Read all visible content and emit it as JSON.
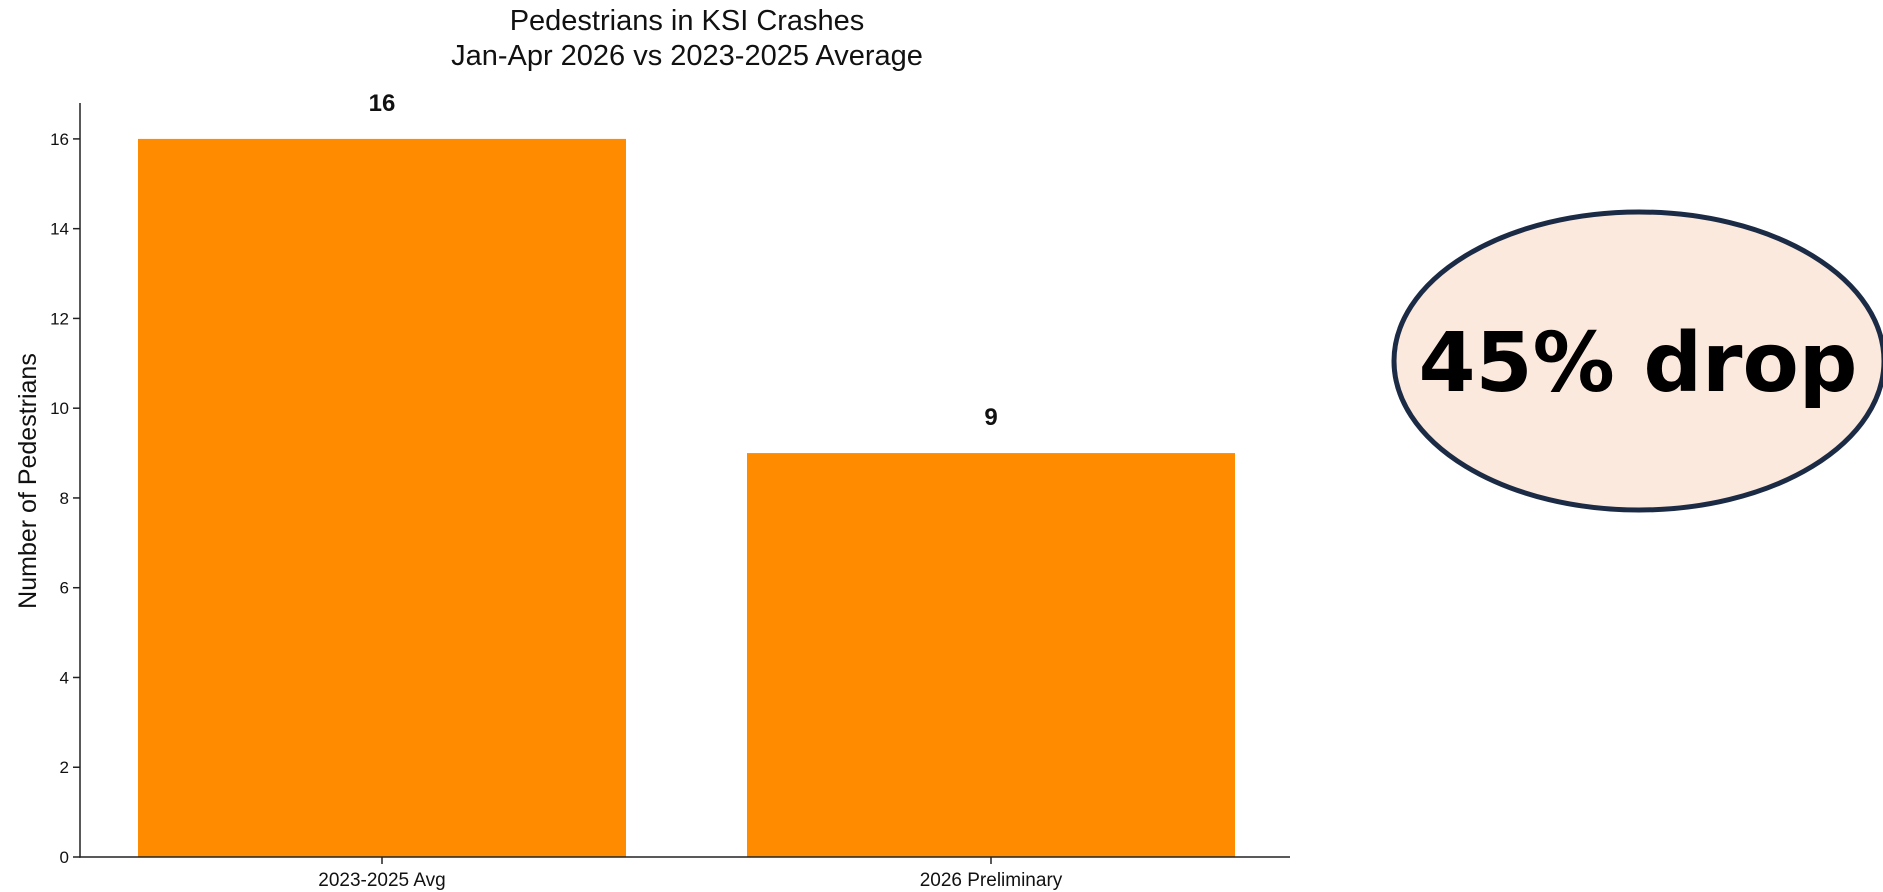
{
  "chart_data": {
    "type": "bar",
    "title": "Pedestrians in KSI Crashes",
    "subtitle": "Jan-Apr 2026 vs 2023-2025 Average",
    "xlabel": "",
    "ylabel": "Number of Pedestrians",
    "categories": [
      "2023-2025 Avg",
      "2026 Preliminary"
    ],
    "values": [
      16,
      9
    ],
    "data_labels": [
      "16",
      "9"
    ],
    "ylim": [
      0,
      16.8
    ],
    "yticks": [
      0,
      2,
      4,
      6,
      8,
      10,
      12,
      14,
      16
    ],
    "bar_color": "#FF8C00",
    "grid": false,
    "legend": "none"
  },
  "callout": {
    "text": "45% drop",
    "fill_color": "#FBE9DD",
    "border_color": "#1C2B45"
  }
}
